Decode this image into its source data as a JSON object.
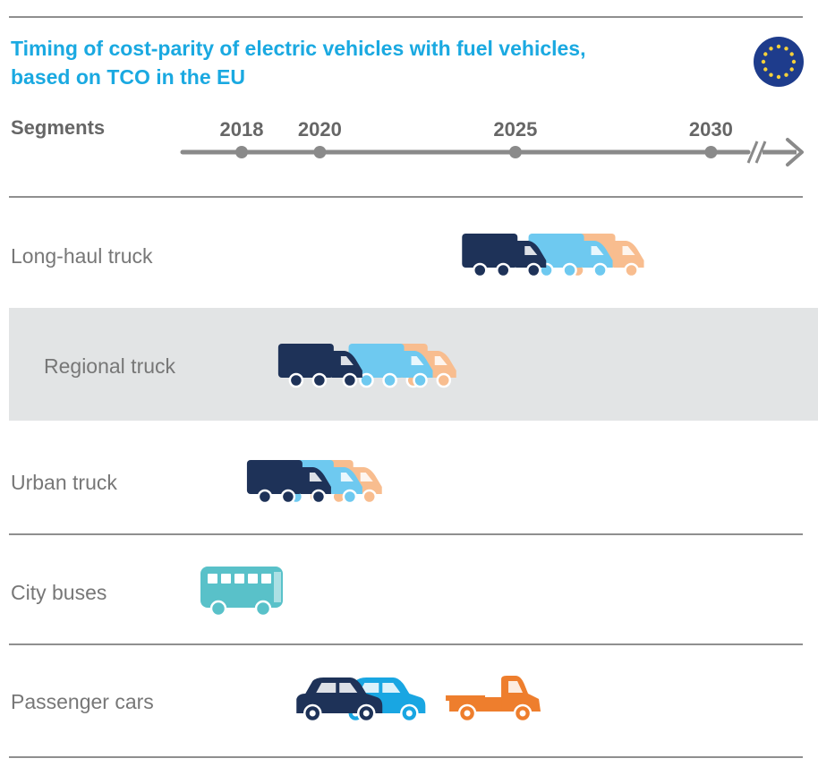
{
  "title_lines": [
    "Timing of cost-parity of electric vehicles with fuel vehicles,",
    "based on TCO in the EU"
  ],
  "segments_heading": "Segments",
  "icons": {
    "flag": "eu-flag-icon",
    "truck": "truck-icon",
    "bus": "bus-icon",
    "car": "car-icon",
    "pickup": "pickup-truck-icon"
  },
  "colors": {
    "title": "#1aa9e1",
    "navy": "#1e3258",
    "light_blue": "#6ec9f0",
    "peach": "#f8bd8f",
    "teal": "#59c1c9",
    "blue": "#19a6e2",
    "orange": "#ee7e2d",
    "axis": "#8a8a8a"
  },
  "chart_data": {
    "type": "timeline",
    "x_ticks": [
      "2018",
      "2020",
      "2025",
      "2030"
    ],
    "x_axis_break_after": 2030,
    "rows": [
      {
        "label": "Long-haul truck",
        "icons": [
          {
            "type": "truck",
            "color": "peach",
            "year": 2027.6
          },
          {
            "type": "truck",
            "color": "light_blue",
            "year": 2026.8
          },
          {
            "type": "truck",
            "color": "navy",
            "year": 2025.1
          }
        ]
      },
      {
        "label": "Regional truck",
        "highlighted": true,
        "icons": [
          {
            "type": "truck",
            "color": "peach",
            "year": 2022.8
          },
          {
            "type": "truck",
            "color": "light_blue",
            "year": 2022.2
          },
          {
            "type": "truck",
            "color": "navy",
            "year": 2020.4
          }
        ]
      },
      {
        "label": "Urban truck",
        "icons": [
          {
            "type": "truck",
            "color": "peach",
            "year": 2020.9
          },
          {
            "type": "truck",
            "color": "light_blue",
            "year": 2020.4
          },
          {
            "type": "truck",
            "color": "navy",
            "year": 2019.6
          }
        ]
      },
      {
        "label": "City buses",
        "icons": [
          {
            "type": "bus",
            "color": "teal",
            "year": 2018.0
          }
        ]
      },
      {
        "label": "Passenger cars",
        "icons": [
          {
            "type": "car",
            "color": "blue",
            "year": 2021.6
          },
          {
            "type": "car",
            "color": "navy",
            "year": 2020.5
          },
          {
            "type": "pickup",
            "color": "orange",
            "year": 2024.5
          }
        ]
      }
    ]
  }
}
